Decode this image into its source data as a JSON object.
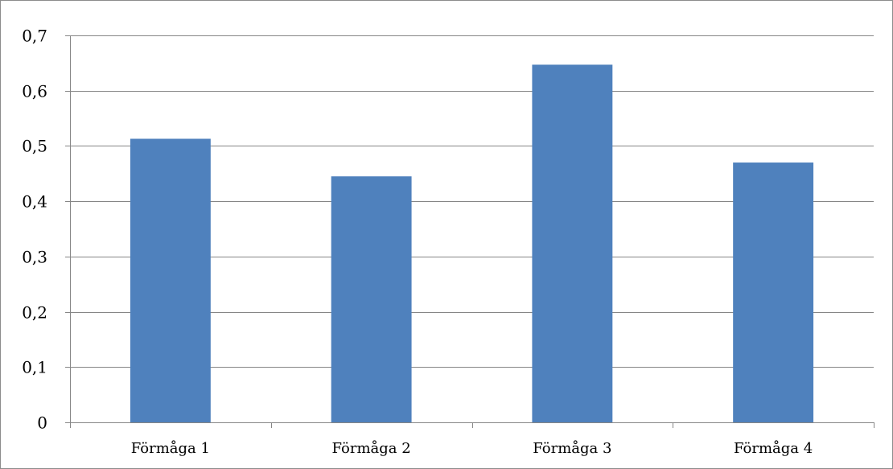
{
  "chart_data": {
    "type": "bar",
    "categories": [
      "Förmåga 1",
      "Förmåga 2",
      "Förmåga 3",
      "Förmåga 4"
    ],
    "values": [
      0.513,
      0.445,
      0.647,
      0.47
    ],
    "title": "",
    "xlabel": "",
    "ylabel": "",
    "ylim": [
      0,
      0.7
    ],
    "yticks": [
      0,
      0.1,
      0.2,
      0.3,
      0.4,
      0.5,
      0.6,
      0.7
    ],
    "ytick_labels": [
      "0",
      "0,1",
      "0,2",
      "0,3",
      "0,4",
      "0,5",
      "0,6",
      "0,7"
    ],
    "grid": true,
    "legend": "none",
    "bar_color": "#4f81bd",
    "grid_color": "#868686"
  }
}
